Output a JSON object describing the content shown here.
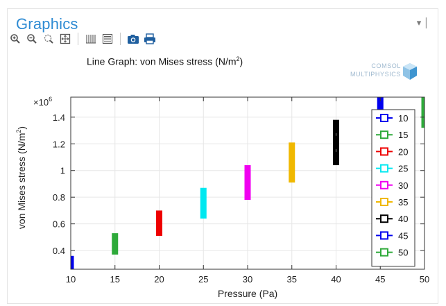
{
  "panel": {
    "title": "Graphics",
    "controls": "▾ │"
  },
  "toolbar": {
    "buttons": [
      {
        "icon": "zoom-in-icon",
        "interactable": true
      },
      {
        "icon": "zoom-out-icon",
        "interactable": true
      },
      {
        "icon": "zoom-box-icon",
        "interactable": true
      },
      {
        "icon": "zoom-extents-icon",
        "interactable": true
      },
      {
        "icon": "show-grid-icon",
        "interactable": true
      },
      {
        "icon": "show-legends-icon",
        "interactable": true
      },
      {
        "icon": "camera-icon",
        "interactable": true
      },
      {
        "icon": "print-icon",
        "interactable": true
      }
    ]
  },
  "plot": {
    "title_prefix": "Line Graph: von Mises stress (N/m",
    "title_sup": "2",
    "title_suffix": ")",
    "brand_line1": "COMSOL",
    "brand_line2": "MULTIPHYSICS"
  },
  "chart_data": {
    "type": "bar",
    "xlabel": "Pressure (Pa)",
    "ylabel_prefix": "von Mises stress (N/m",
    "ylabel_sup": "2",
    "ylabel_suffix": ")",
    "y_multiplier_base": "×10",
    "y_multiplier_exp": "6",
    "xlim": [
      10,
      50
    ],
    "ylim": [
      0.26,
      1.55
    ],
    "x_ticks": [
      10,
      15,
      20,
      25,
      30,
      35,
      40,
      45,
      50
    ],
    "y_ticks": [
      0.4,
      0.6,
      0.8,
      1,
      1.2,
      1.4
    ],
    "y_tick_labels": [
      "0.4",
      "0.6",
      "0.8",
      "1",
      "1.2",
      "1.4"
    ],
    "grid": true,
    "legend_position": "right",
    "series": [
      {
        "name": "10",
        "color": "#0000ee",
        "x": 10,
        "y_min": 0.26,
        "y_max": 0.36
      },
      {
        "name": "15",
        "color": "#2eaa3a",
        "x": 15,
        "y_min": 0.37,
        "y_max": 0.53
      },
      {
        "name": "20",
        "color": "#ee0000",
        "x": 20,
        "y_min": 0.51,
        "y_max": 0.7
      },
      {
        "name": "25",
        "color": "#00e8f0",
        "x": 25,
        "y_min": 0.64,
        "y_max": 0.87
      },
      {
        "name": "30",
        "color": "#f000f0",
        "x": 30,
        "y_min": 0.78,
        "y_max": 1.04
      },
      {
        "name": "35",
        "color": "#f0b800",
        "x": 35,
        "y_min": 0.91,
        "y_max": 1.21
      },
      {
        "name": "40",
        "color": "#000000",
        "x": 40,
        "y_min": 1.04,
        "y_max": 1.38
      },
      {
        "name": "45",
        "color": "#0000ee",
        "x": 45,
        "y_min": 1.18,
        "y_max": 1.55
      },
      {
        "name": "50",
        "color": "#2eaa3a",
        "x": 50,
        "y_min": 1.32,
        "y_max": 1.72
      }
    ]
  }
}
